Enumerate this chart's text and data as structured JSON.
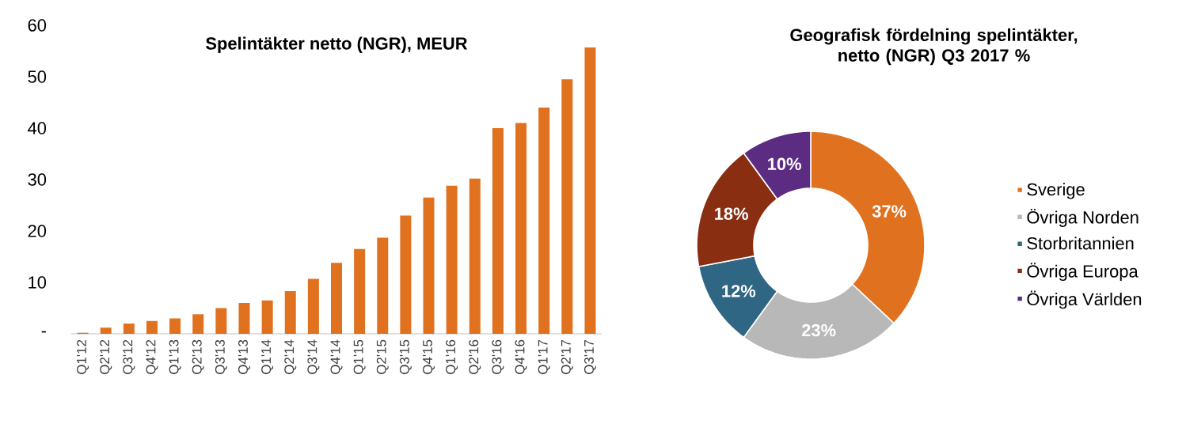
{
  "chart_data": [
    {
      "type": "bar",
      "title": "Spelintäkter netto (NGR), MEUR",
      "categories": [
        "Q1'12",
        "Q2'12",
        "Q3'12",
        "Q4'12",
        "Q1'13",
        "Q2'13",
        "Q3'13",
        "Q4'13",
        "Q1'14",
        "Q2'14",
        "Q3'14",
        "Q4'14",
        "Q1'15",
        "Q2'15",
        "Q3'15",
        "Q4'15",
        "Q1'16",
        "Q2'16",
        "Q3'16",
        "Q4'16",
        "Q1'17",
        "Q2'17",
        "Q3'17"
      ],
      "values": [
        0.2,
        1.2,
        2,
        2.5,
        3,
        3.8,
        5,
        6,
        6.5,
        8.3,
        10.7,
        13.8,
        16.5,
        18.7,
        23,
        26.5,
        28.8,
        30.2,
        40,
        41,
        44,
        49.5,
        55.7
      ],
      "color": "#e0711f",
      "ylim": [
        0,
        60
      ],
      "yticks": [
        {
          "value": 0,
          "label": "-"
        },
        10,
        20,
        30,
        40,
        50,
        60
      ]
    },
    {
      "type": "donut",
      "title": "Geografisk fördelning spelintäkter, netto (NGR) Q3 2017 %",
      "categories": [
        "Sverige",
        "Övriga Norden",
        "Storbritannien",
        "Övriga Europa",
        "Övriga Världen"
      ],
      "values": [
        37,
        23,
        12,
        18,
        10
      ],
      "colors": [
        "#e0711f",
        "#b8b8b8",
        "#2f6684",
        "#8a2e12",
        "#5b2c82"
      ],
      "value_labels": [
        "37%",
        "23%",
        "12%",
        "18%",
        "10%"
      ],
      "legend": "right"
    }
  ]
}
